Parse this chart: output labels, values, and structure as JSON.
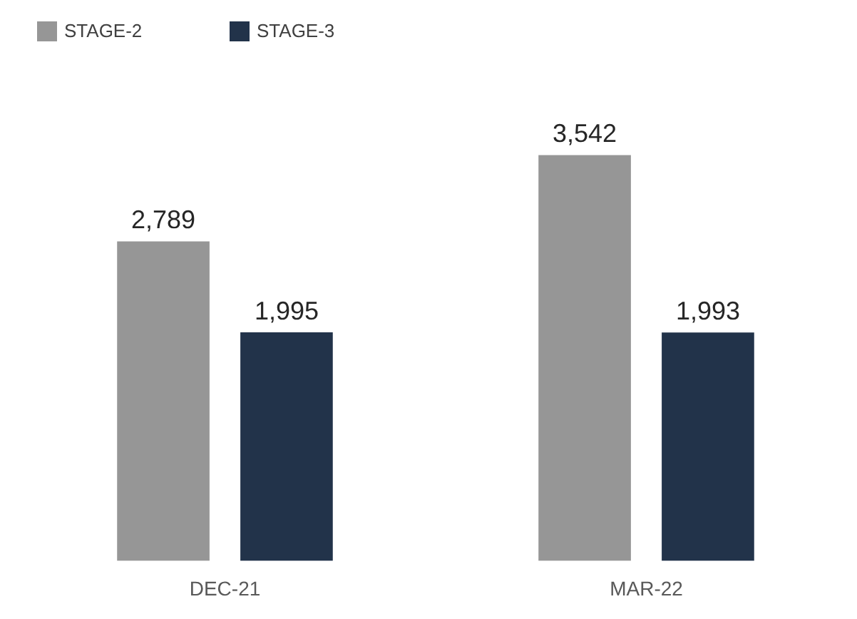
{
  "chart_data": {
    "type": "bar",
    "categories": [
      "DEC-21",
      "MAR-22"
    ],
    "series": [
      {
        "name": "STAGE-2",
        "color": "#969696",
        "values": [
          2789,
          3542
        ],
        "value_labels": [
          "2,789",
          "3,542"
        ]
      },
      {
        "name": "STAGE-3",
        "color": "#22334a",
        "values": [
          1995,
          1993
        ],
        "value_labels": [
          "1,995",
          "1,993"
        ]
      }
    ],
    "legend": "top left",
    "grid": false
  }
}
